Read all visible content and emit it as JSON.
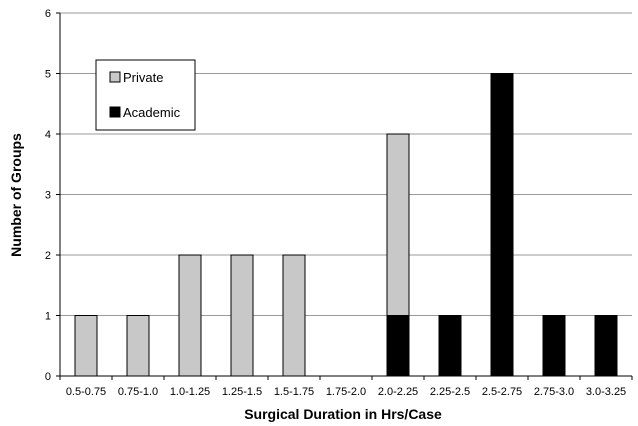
{
  "chart_data": {
    "type": "bar",
    "stacked": true,
    "title": "",
    "xlabel": "Surgical Duration in Hrs/Case",
    "ylabel": "Number of Groups",
    "ylim": [
      0,
      6
    ],
    "yticks": [
      0,
      1,
      2,
      3,
      4,
      5,
      6
    ],
    "grid": true,
    "legend_position": "top-left",
    "categories": [
      "0.5-0.75",
      "0.75-1.0",
      "1.0-1.25",
      "1.25-1.5",
      "1.5-1.75",
      "1.75-2.0",
      "2.0-2.25",
      "2.25-2.5",
      "2.5-2.75",
      "2.75-3.0",
      "3.0-3.25"
    ],
    "series": [
      {
        "name": "Academic",
        "color": "#000000",
        "values": [
          0,
          0,
          0,
          0,
          0,
          0,
          1,
          1,
          5,
          1,
          1
        ]
      },
      {
        "name": "Private",
        "color": "#c8c8c8",
        "values": [
          1,
          1,
          2,
          2,
          2,
          0,
          3,
          0,
          0,
          0,
          0
        ]
      }
    ],
    "legend_order": [
      "Private",
      "Academic"
    ]
  }
}
